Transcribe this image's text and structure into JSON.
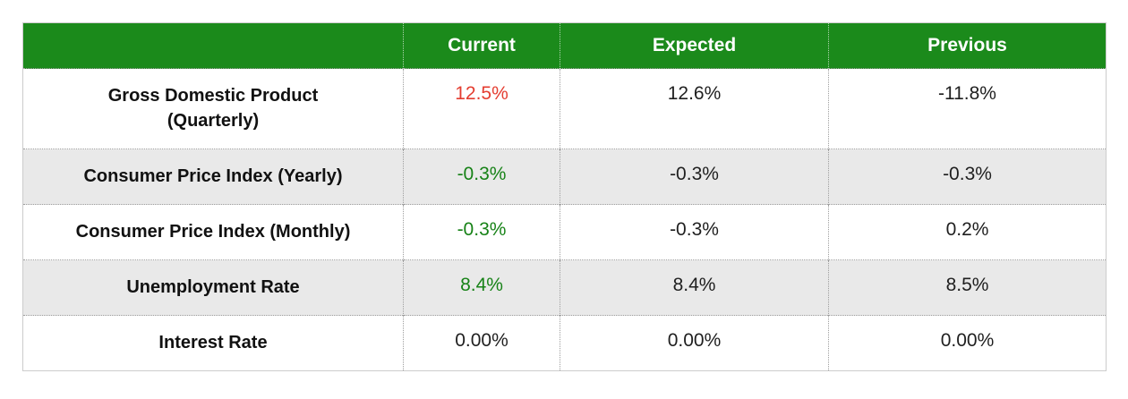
{
  "colors": {
    "header_bg": "#1b8a1b",
    "header_text": "#ffffff",
    "alt_row_bg": "#e9e9e9",
    "negative_red": "#e43d30",
    "positive_green": "#178217",
    "body_text": "#1f1f1f",
    "dotted_border": "#9e9e9e",
    "outer_border": "#cccccc"
  },
  "table": {
    "headers": [
      "",
      "Current",
      "Expected",
      "Previous"
    ],
    "rows": [
      {
        "label_lines": [
          "Gross Domestic Product",
          "(Quarterly)"
        ],
        "current": "12.5%",
        "current_color": "red",
        "expected": "12.6%",
        "previous": "-11.8%"
      },
      {
        "label_lines": [
          "Consumer Price Index (Yearly)"
        ],
        "current": "-0.3%",
        "current_color": "green",
        "expected": "-0.3%",
        "previous": "-0.3%"
      },
      {
        "label_lines": [
          "Consumer Price Index (Monthly)"
        ],
        "current": "-0.3%",
        "current_color": "green",
        "expected": "-0.3%",
        "previous": "0.2%"
      },
      {
        "label_lines": [
          "Unemployment Rate"
        ],
        "current": "8.4%",
        "current_color": "green",
        "expected": "8.4%",
        "previous": "8.5%"
      },
      {
        "label_lines": [
          "Interest Rate"
        ],
        "current": "0.00%",
        "current_color": "black",
        "expected": "0.00%",
        "previous": "0.00%"
      }
    ]
  },
  "chart_data": {
    "type": "table",
    "columns": [
      "",
      "Current",
      "Expected",
      "Previous"
    ],
    "rows": [
      [
        "Gross Domestic Product (Quarterly)",
        "12.5%",
        "12.6%",
        "-11.8%"
      ],
      [
        "Consumer Price Index (Yearly)",
        "-0.3%",
        "-0.3%",
        "-0.3%"
      ],
      [
        "Consumer Price Index (Monthly)",
        "-0.3%",
        "-0.3%",
        "0.2%"
      ],
      [
        "Unemployment Rate",
        "8.4%",
        "8.4%",
        "8.5%"
      ],
      [
        "Interest Rate",
        "0.00%",
        "0.00%",
        "0.00%"
      ]
    ],
    "current_value_colors": [
      "red",
      "green",
      "green",
      "green",
      "black"
    ],
    "layout": {
      "header_background": "#1b8a1b",
      "alternating_row_shading": true,
      "cell_dividers": "dotted"
    }
  }
}
